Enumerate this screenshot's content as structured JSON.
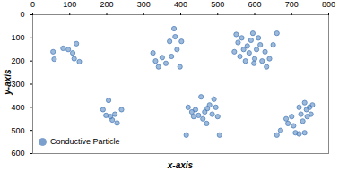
{
  "chart_data": {
    "type": "scatter",
    "x_label": "x-axis",
    "y_label": "y-axis",
    "xlim": [
      0,
      800
    ],
    "xticks": [
      0,
      100,
      200,
      300,
      400,
      500,
      600,
      700,
      800
    ],
    "ylim": [
      0,
      600
    ],
    "yticks": [
      0,
      100,
      200,
      300,
      400,
      500,
      600
    ],
    "grid": false,
    "legend": "lower left",
    "series": [
      {
        "name": "Conductive Particle",
        "color": "#4f81bd",
        "marker": "circle",
        "x": [
          55,
          58,
          82,
          96,
          108,
          118,
          112,
          126,
          325,
          332,
          340,
          350,
          360,
          370,
          375,
          382,
          385,
          390,
          398,
          402,
          550,
          555,
          560,
          565,
          570,
          575,
          580,
          585,
          590,
          595,
          598,
          600,
          605,
          610,
          615,
          620,
          628,
          632,
          640,
          650,
          660,
          545,
          190,
          198,
          205,
          210,
          215,
          222,
          228,
          240,
          415,
          420,
          430,
          435,
          440,
          448,
          455,
          460,
          465,
          470,
          478,
          485,
          490,
          495,
          500,
          505,
          472,
          660,
          670,
          685,
          690,
          700,
          705,
          710,
          720,
          725,
          730,
          735,
          740,
          742,
          748,
          752,
          756,
          735,
          720
        ],
        "y": [
          160,
          192,
          145,
          150,
          165,
          125,
          190,
          203,
          165,
          200,
          225,
          185,
          210,
          115,
          180,
          60,
          95,
          150,
          225,
          115,
          85,
          120,
          180,
          100,
          150,
          200,
          135,
          165,
          110,
          80,
          210,
          190,
          150,
          100,
          130,
          200,
          160,
          225,
          190,
          130,
          80,
          160,
          410,
          435,
          370,
          440,
          455,
          430,
          468,
          410,
          520,
          400,
          420,
          440,
          410,
          435,
          355,
          450,
          420,
          470,
          390,
          430,
          365,
          400,
          440,
          520,
          405,
          520,
          500,
          450,
          470,
          440,
          480,
          510,
          400,
          430,
          460,
          380,
          410,
          440,
          400,
          430,
          390,
          510,
          515
        ]
      }
    ]
  }
}
